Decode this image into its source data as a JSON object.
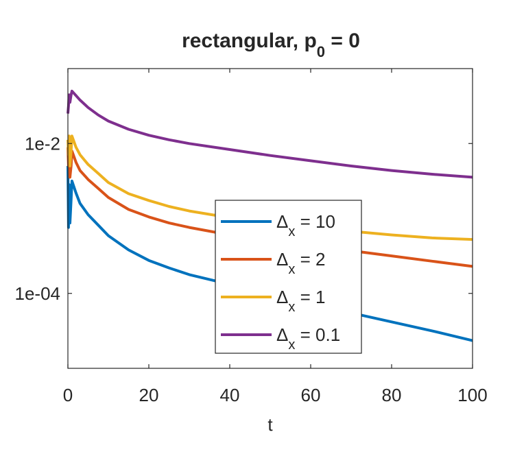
{
  "chart_data": {
    "type": "line",
    "title_main": "rectangular, p",
    "title_sub": "0",
    "title_tail": " = 0",
    "xlabel": "t",
    "ylabel": "",
    "xlim": [
      0,
      100
    ],
    "ylim_log10": [
      -5,
      -1
    ],
    "y_scale": "log",
    "grid": false,
    "legend_position": "lower-center-right",
    "x_ticks": [
      {
        "value": 0,
        "label": "0"
      },
      {
        "value": 20,
        "label": "20"
      },
      {
        "value": 40,
        "label": "40"
      },
      {
        "value": 60,
        "label": "60"
      },
      {
        "value": 80,
        "label": "80"
      },
      {
        "value": 100,
        "label": "100"
      }
    ],
    "y_ticks": [
      {
        "log10": -2,
        "label": "1e-2"
      },
      {
        "log10": -4,
        "label": "1e-04"
      }
    ],
    "series": [
      {
        "name": "10",
        "color": "#0072BD",
        "x": [
          0,
          0.15,
          0.3,
          0.5,
          0.8,
          1,
          2,
          3,
          5,
          7.5,
          10,
          15,
          20,
          25,
          30,
          40,
          50,
          60,
          70,
          80,
          90,
          100
        ],
        "log10y": [
          -2.3,
          -3.12,
          -2.55,
          -3.06,
          -2.75,
          -2.5,
          -2.66,
          -2.8,
          -2.95,
          -3.09,
          -3.23,
          -3.42,
          -3.56,
          -3.66,
          -3.75,
          -3.88,
          -4.0,
          -4.12,
          -4.26,
          -4.38,
          -4.5,
          -4.63
        ]
      },
      {
        "name": "2",
        "color": "#D95319",
        "x": [
          0,
          0.15,
          0.3,
          0.5,
          0.8,
          1,
          2,
          3,
          5,
          7.5,
          10,
          15,
          20,
          25,
          30,
          40,
          50,
          60,
          70,
          80,
          90,
          100
        ],
        "log10y": [
          -2.05,
          -2.3,
          -2.0,
          -2.45,
          -2.3,
          -2.1,
          -2.25,
          -2.36,
          -2.48,
          -2.6,
          -2.72,
          -2.88,
          -2.98,
          -3.06,
          -3.12,
          -3.22,
          -3.29,
          -3.36,
          -3.43,
          -3.5,
          -3.57,
          -3.64
        ]
      },
      {
        "name": "1",
        "color": "#EDB120",
        "x": [
          0,
          0.15,
          0.3,
          0.5,
          0.8,
          1,
          2,
          3,
          5,
          7.5,
          10,
          15,
          20,
          25,
          30,
          40,
          50,
          60,
          70,
          80,
          90,
          100
        ],
        "log10y": [
          -1.95,
          -2.15,
          -1.9,
          -2.3,
          -2.1,
          -1.9,
          -2.05,
          -2.15,
          -2.28,
          -2.4,
          -2.52,
          -2.67,
          -2.76,
          -2.84,
          -2.9,
          -2.99,
          -3.06,
          -3.12,
          -3.17,
          -3.22,
          -3.26,
          -3.28
        ]
      },
      {
        "name": "0.1",
        "color": "#7E2F8E",
        "x": [
          0,
          0.15,
          0.3,
          0.5,
          0.8,
          1,
          2,
          3,
          5,
          7.5,
          10,
          15,
          20,
          25,
          30,
          40,
          50,
          60,
          70,
          80,
          90,
          100
        ],
        "log10y": [
          -1.6,
          -1.5,
          -1.35,
          -1.45,
          -1.35,
          -1.3,
          -1.36,
          -1.42,
          -1.52,
          -1.62,
          -1.7,
          -1.81,
          -1.89,
          -1.95,
          -2.0,
          -2.08,
          -2.16,
          -2.23,
          -2.3,
          -2.36,
          -2.41,
          -2.45
        ]
      }
    ],
    "legend": {
      "label_prefix": "Δ",
      "label_sub": "x",
      "label_mid": " = "
    }
  }
}
